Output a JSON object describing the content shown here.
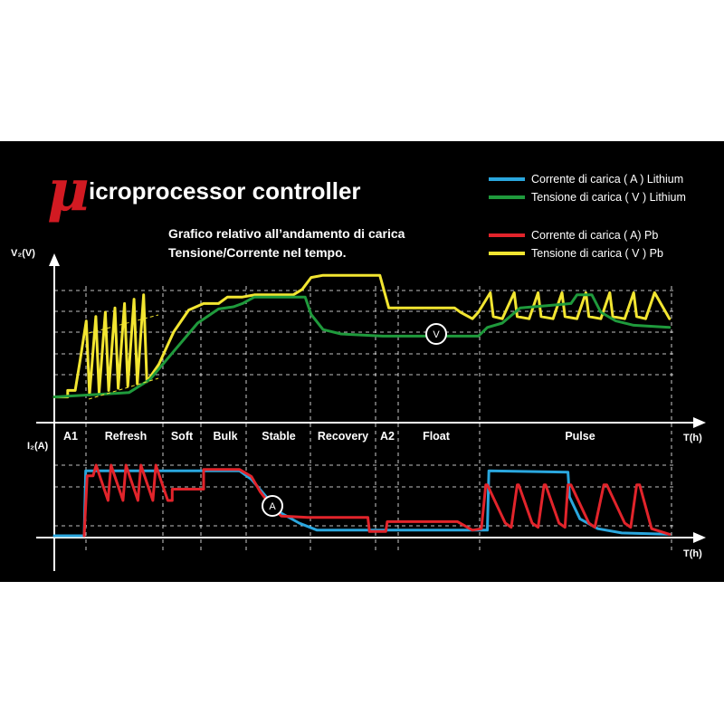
{
  "title": {
    "mu": "μ",
    "rest": "icroprocessor controller"
  },
  "subtitle": {
    "line1": "Grafico relativo all’andamento di carica",
    "line2": "Tensione/Corrente nel tempo."
  },
  "colors": {
    "background": "#000000",
    "lithium_current": "#2aa7de",
    "lithium_voltage": "#1f9a3c",
    "pb_current": "#e2242b",
    "pb_voltage": "#f2e531",
    "grid": "#ffffff",
    "title_mu": "#d21a22"
  },
  "legend": [
    {
      "label": "Corrente di carica ( A ) Lithium",
      "color": "#2aa7de"
    },
    {
      "label": "Tensione di carica ( V ) Lithium",
      "color": "#1f9a3c"
    },
    {
      "label": "Corrente di carica ( A) Pb",
      "color": "#e2242b"
    },
    {
      "label": "Tensione di carica ( V ) Pb",
      "color": "#f2e531"
    }
  ],
  "axes": {
    "top_y": "V₂(V)",
    "bottom_y": "I₂(A)",
    "top_x": "T(h)",
    "bottom_x": "T(h)"
  },
  "markers": {
    "voltage": "V",
    "current": "A"
  },
  "chart_data": [
    {
      "type": "line",
      "panel": "voltage",
      "ylabel": "V₂(V)",
      "xlabel": "T(h)",
      "grid": true,
      "legend_position": "top-right",
      "categories": [
        "A1",
        "Refresh",
        "Soft",
        "Bulk",
        "Stable",
        "Recovery",
        "A2",
        "Float",
        "Pulse"
      ],
      "series": [
        {
          "name": "Tensione di carica ( V ) Pb",
          "color": "#f2e531",
          "points": [
            [
              0,
              0.02
            ],
            [
              0.45,
              0.02
            ],
            [
              0.45,
              0.08
            ],
            [
              0.7,
              0.08
            ],
            [
              0.86,
              0.35
            ],
            [
              1.07,
              0.72
            ],
            [
              1.18,
              0.04
            ],
            [
              1.39,
              0.76
            ],
            [
              1.5,
              0.06
            ],
            [
              1.71,
              0.8
            ],
            [
              1.82,
              0.08
            ],
            [
              2.03,
              0.84
            ],
            [
              2.14,
              0.1
            ],
            [
              2.35,
              0.88
            ],
            [
              2.46,
              0.12
            ],
            [
              2.67,
              0.92
            ],
            [
              2.78,
              0.14
            ],
            [
              2.99,
              0.96
            ],
            [
              3.1,
              0.16
            ],
            [
              3.5,
              0.32
            ],
            [
              4.0,
              0.62
            ],
            [
              4.5,
              0.82
            ],
            [
              5.0,
              0.88
            ],
            [
              5.5,
              0.88
            ],
            [
              5.8,
              0.94
            ],
            [
              6.3,
              0.94
            ],
            [
              6.7,
              0.96
            ],
            [
              7.2,
              0.96
            ],
            [
              8.0,
              0.96
            ],
            [
              8.3,
              1.01
            ],
            [
              8.6,
              1.12
            ],
            [
              9.0,
              1.14
            ],
            [
              10.0,
              1.14
            ],
            [
              10.9,
              1.14
            ],
            [
              11.0,
              1.04
            ],
            [
              11.2,
              0.84
            ],
            [
              12.3,
              0.84
            ],
            [
              13.4,
              0.84
            ],
            [
              13.6,
              0.8
            ],
            [
              14.0,
              0.74
            ],
            [
              14.2,
              0.8
            ],
            [
              14.6,
              0.98
            ],
            [
              14.7,
              0.76
            ],
            [
              15.0,
              0.74
            ],
            [
              15.4,
              0.98
            ],
            [
              15.5,
              0.76
            ],
            [
              15.9,
              0.74
            ],
            [
              16.2,
              0.98
            ],
            [
              16.3,
              0.76
            ],
            [
              16.7,
              0.74
            ],
            [
              17.0,
              0.98
            ],
            [
              17.1,
              0.76
            ],
            [
              17.5,
              0.74
            ],
            [
              17.8,
              0.98
            ],
            [
              17.9,
              0.76
            ],
            [
              18.3,
              0.74
            ],
            [
              18.6,
              0.98
            ],
            [
              18.7,
              0.76
            ],
            [
              19.1,
              0.74
            ],
            [
              19.4,
              0.98
            ],
            [
              19.5,
              0.76
            ],
            [
              19.8,
              0.74
            ],
            [
              20.1,
              0.98
            ],
            [
              20.6,
              0.74
            ]
          ]
        },
        {
          "name": "Tensione di carica ( V ) Lithium",
          "color": "#1f9a3c",
          "points": [
            [
              0,
              0.02
            ],
            [
              2.5,
              0.06
            ],
            [
              3.2,
              0.18
            ],
            [
              4.0,
              0.44
            ],
            [
              4.8,
              0.7
            ],
            [
              5.5,
              0.83
            ],
            [
              6.0,
              0.85
            ],
            [
              6.3,
              0.88
            ],
            [
              6.7,
              0.94
            ],
            [
              7.5,
              0.94
            ],
            [
              8.4,
              0.94
            ],
            [
              8.6,
              0.78
            ],
            [
              9.0,
              0.64
            ],
            [
              9.6,
              0.6
            ],
            [
              11.0,
              0.58
            ],
            [
              12.5,
              0.58
            ],
            [
              14.2,
              0.58
            ],
            [
              14.5,
              0.66
            ],
            [
              15.0,
              0.7
            ],
            [
              15.6,
              0.84
            ],
            [
              16.5,
              0.86
            ],
            [
              17.3,
              0.88
            ],
            [
              17.5,
              0.96
            ],
            [
              18.0,
              0.96
            ],
            [
              18.3,
              0.8
            ],
            [
              18.8,
              0.72
            ],
            [
              19.4,
              0.68
            ],
            [
              20.6,
              0.66
            ]
          ]
        }
      ]
    },
    {
      "type": "line",
      "panel": "current",
      "ylabel": "I₂(A)",
      "xlabel": "T(h)",
      "grid": true,
      "categories": [
        "A1",
        "Refresh",
        "Soft",
        "Bulk",
        "Stable",
        "Recovery",
        "A2",
        "Float",
        "Pulse"
      ],
      "series": [
        {
          "name": "Corrente di carica ( A ) Lithium",
          "color": "#2aa7de",
          "points": [
            [
              0,
              0
            ],
            [
              1.0,
              0
            ],
            [
              1.05,
              0.92
            ],
            [
              6.2,
              0.92
            ],
            [
              6.6,
              0.8
            ],
            [
              7.2,
              0.5
            ],
            [
              7.6,
              0.32
            ],
            [
              8.2,
              0.18
            ],
            [
              8.8,
              0.08
            ],
            [
              11.5,
              0.08
            ],
            [
              14.5,
              0.08
            ],
            [
              14.55,
              0.92
            ],
            [
              17.2,
              0.9
            ],
            [
              17.25,
              0.55
            ],
            [
              17.6,
              0.24
            ],
            [
              18.2,
              0.1
            ],
            [
              19.0,
              0.04
            ],
            [
              20.6,
              0.02
            ]
          ]
        },
        {
          "name": "Corrente di carica ( A) Pb",
          "color": "#e2242b",
          "points": [
            [
              1.0,
              0
            ],
            [
              1.1,
              0.85
            ],
            [
              1.3,
              0.85
            ],
            [
              1.4,
              1.0
            ],
            [
              1.8,
              0.5
            ],
            [
              1.9,
              1.0
            ],
            [
              2.3,
              0.5
            ],
            [
              2.4,
              1.0
            ],
            [
              2.8,
              0.5
            ],
            [
              2.9,
              1.0
            ],
            [
              3.3,
              0.5
            ],
            [
              3.4,
              1.0
            ],
            [
              3.8,
              0.5
            ],
            [
              3.95,
              0.5
            ],
            [
              3.95,
              0.66
            ],
            [
              5.0,
              0.66
            ],
            [
              5.0,
              0.94
            ],
            [
              6.2,
              0.94
            ],
            [
              6.6,
              0.84
            ],
            [
              6.9,
              0.62
            ],
            [
              7.3,
              0.4
            ],
            [
              7.6,
              0.28
            ],
            [
              8.5,
              0.26
            ],
            [
              9.0,
              0.26
            ],
            [
              10.5,
              0.26
            ],
            [
              10.55,
              0.06
            ],
            [
              11.1,
              0.06
            ],
            [
              11.15,
              0.2
            ],
            [
              13.5,
              0.2
            ],
            [
              14.0,
              0.08
            ],
            [
              14.3,
              0.1
            ],
            [
              14.45,
              0.72
            ],
            [
              14.5,
              0.72
            ],
            [
              15.1,
              0.18
            ],
            [
              15.3,
              0.12
            ],
            [
              15.5,
              0.72
            ],
            [
              15.55,
              0.72
            ],
            [
              16.0,
              0.18
            ],
            [
              16.2,
              0.12
            ],
            [
              16.4,
              0.72
            ],
            [
              16.45,
              0.72
            ],
            [
              16.9,
              0.18
            ],
            [
              17.1,
              0.12
            ],
            [
              17.2,
              0.72
            ],
            [
              17.3,
              0.72
            ],
            [
              17.9,
              0.18
            ],
            [
              18.1,
              0.12
            ],
            [
              18.4,
              0.72
            ],
            [
              18.5,
              0.72
            ],
            [
              19.1,
              0.18
            ],
            [
              19.3,
              0.12
            ],
            [
              19.5,
              0.72
            ],
            [
              19.6,
              0.72
            ],
            [
              20.0,
              0.1
            ],
            [
              20.6,
              0.02
            ]
          ]
        }
      ]
    }
  ]
}
